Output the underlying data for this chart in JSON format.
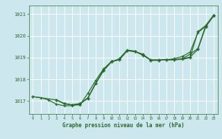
{
  "bg_color": "#cce8ee",
  "grid_color": "#ffffff",
  "line_color": "#2d6a2d",
  "xlabel": "Graphe pression niveau de la mer (hPa)",
  "xlabel_color": "#2d6a2d",
  "xlim": [
    -0.5,
    23.5
  ],
  "ylim": [
    1016.4,
    1021.4
  ],
  "yticks": [
    1017,
    1018,
    1019,
    1020,
    1021
  ],
  "xticks": [
    0,
    1,
    2,
    3,
    4,
    5,
    6,
    7,
    8,
    9,
    10,
    11,
    12,
    13,
    14,
    15,
    16,
    17,
    18,
    19,
    20,
    21,
    22,
    23
  ],
  "series": [
    {
      "x": [
        0,
        1,
        2,
        3,
        4,
        5,
        6,
        7,
        8,
        9,
        10,
        11,
        12,
        13,
        14,
        15,
        16,
        17,
        18,
        19,
        20,
        21,
        22,
        23
      ],
      "y": [
        1017.2,
        1017.15,
        1017.05,
        1016.85,
        1016.78,
        1016.78,
        1016.85,
        1017.15,
        1017.8,
        1018.4,
        1018.8,
        1018.95,
        1019.35,
        1019.3,
        1019.1,
        1018.9,
        1018.9,
        1018.9,
        1018.95,
        1019.05,
        1019.25,
        1020.15,
        1020.45,
        1020.95
      ]
    },
    {
      "x": [
        0,
        3,
        4,
        5,
        6,
        7,
        8,
        9,
        10,
        11,
        12,
        13,
        14,
        15,
        16,
        17,
        18,
        19,
        20,
        21,
        22,
        23
      ],
      "y": [
        1017.2,
        1017.05,
        1016.88,
        1016.82,
        1016.82,
        1017.35,
        1017.95,
        1018.48,
        1018.82,
        1018.92,
        1019.32,
        1019.28,
        1019.12,
        1018.88,
        1018.88,
        1018.9,
        1018.9,
        1018.92,
        1019.0,
        1020.2,
        1020.48,
        1020.95
      ]
    },
    {
      "x": [
        3,
        4,
        5,
        6,
        7,
        8,
        9,
        10,
        11,
        12,
        13,
        14,
        15,
        16,
        17,
        18,
        19,
        20,
        21,
        22,
        23
      ],
      "y": [
        1017.05,
        1016.88,
        1016.82,
        1016.88,
        1017.12,
        1017.82,
        1018.42,
        1018.82,
        1018.9,
        1019.32,
        1019.28,
        1019.15,
        1018.88,
        1018.88,
        1018.9,
        1018.9,
        1018.95,
        1019.15,
        1019.42,
        1020.48,
        1020.95
      ]
    },
    {
      "x": [
        3,
        4,
        5,
        6,
        7,
        8,
        9,
        10,
        11,
        12,
        13,
        14,
        15,
        16,
        17,
        18,
        19,
        20,
        21,
        22,
        23
      ],
      "y": [
        1017.05,
        1016.88,
        1016.82,
        1016.88,
        1017.12,
        1017.82,
        1018.42,
        1018.82,
        1018.9,
        1019.32,
        1019.28,
        1019.15,
        1018.88,
        1018.88,
        1018.9,
        1018.9,
        1018.95,
        1019.02,
        1019.38,
        1020.42,
        1020.92
      ]
    }
  ]
}
